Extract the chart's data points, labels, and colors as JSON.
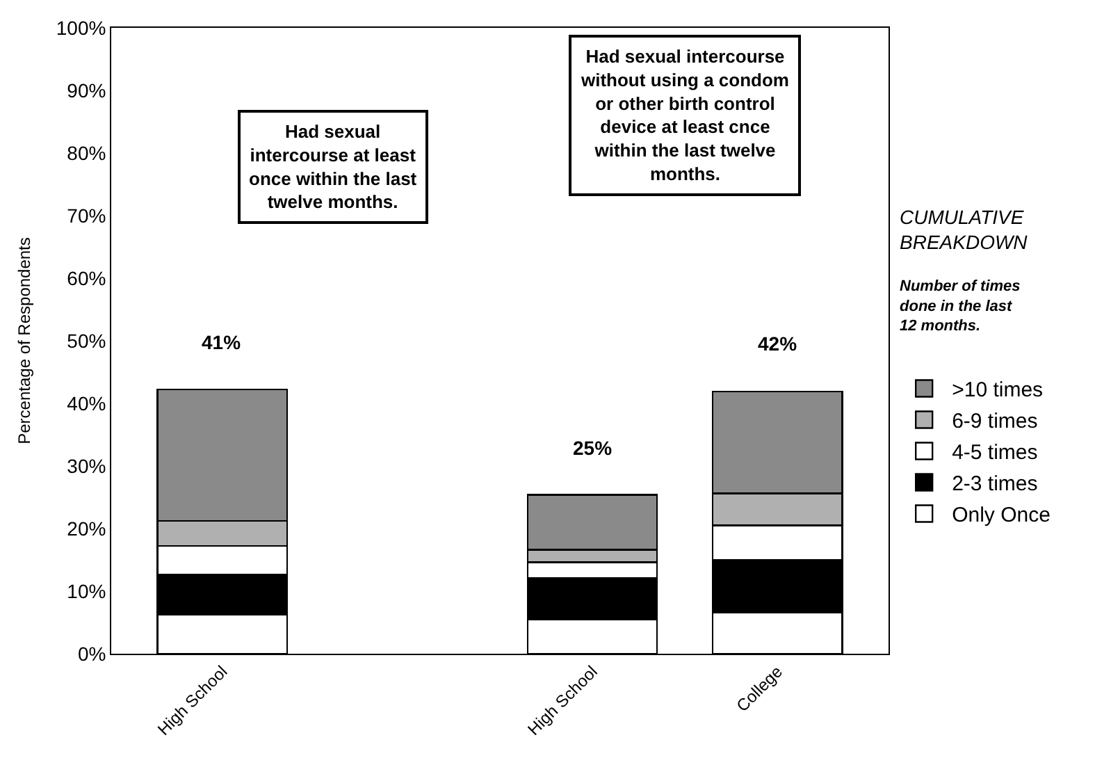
{
  "chart_data": {
    "type": "bar",
    "stacked": true,
    "ylabel": "Percentage of Respondents",
    "categories": [
      "High School",
      null,
      "High School",
      "College"
    ],
    "series": [
      {
        "name": "Only Once",
        "color": "#ffffff",
        "values": [
          6.2,
          null,
          5.5,
          6.6
        ]
      },
      {
        "name": "2-3 times",
        "color": "#000000",
        "values": [
          6.4,
          null,
          6.6,
          8.4
        ]
      },
      {
        "name": "4-5 times",
        "color": "#ffffff",
        "values": [
          4.6,
          null,
          2.5,
          5.5
        ]
      },
      {
        "name": "6-9 times",
        "color": "#b0b0b0",
        "values": [
          4.0,
          null,
          2.0,
          5.1
        ]
      },
      {
        "name": ">10 times",
        "color": "#8a8a8a",
        "values": [
          21.0,
          null,
          8.8,
          16.3
        ]
      }
    ],
    "totals": [
      "41%",
      null,
      "25%",
      "42%"
    ],
    "ylim": [
      0,
      100
    ],
    "yticks": [
      {
        "value": 0,
        "label": "0%"
      },
      {
        "value": 10,
        "label": "10%"
      },
      {
        "value": 20,
        "label": "20%"
      },
      {
        "value": 30,
        "label": "30%"
      },
      {
        "value": 40,
        "label": "40%"
      },
      {
        "value": 50,
        "label": "50%"
      },
      {
        "value": 60,
        "label": "60%"
      },
      {
        "value": 70,
        "label": "70%"
      },
      {
        "value": 80,
        "label": "80%"
      },
      {
        "value": 90,
        "label": "90%"
      },
      {
        "value": 100,
        "label": "100%"
      }
    ],
    "legend": "right",
    "legend_title": "CUMULATIVE BREAKDOWN",
    "annotations": [
      "Had sexual intercourse at least once within the last twelve months.",
      "Had sexual intercourse without using a condom or other birth control device at least cnce within the last twelve months.",
      "Number of times done in the last 12 months."
    ]
  }
}
